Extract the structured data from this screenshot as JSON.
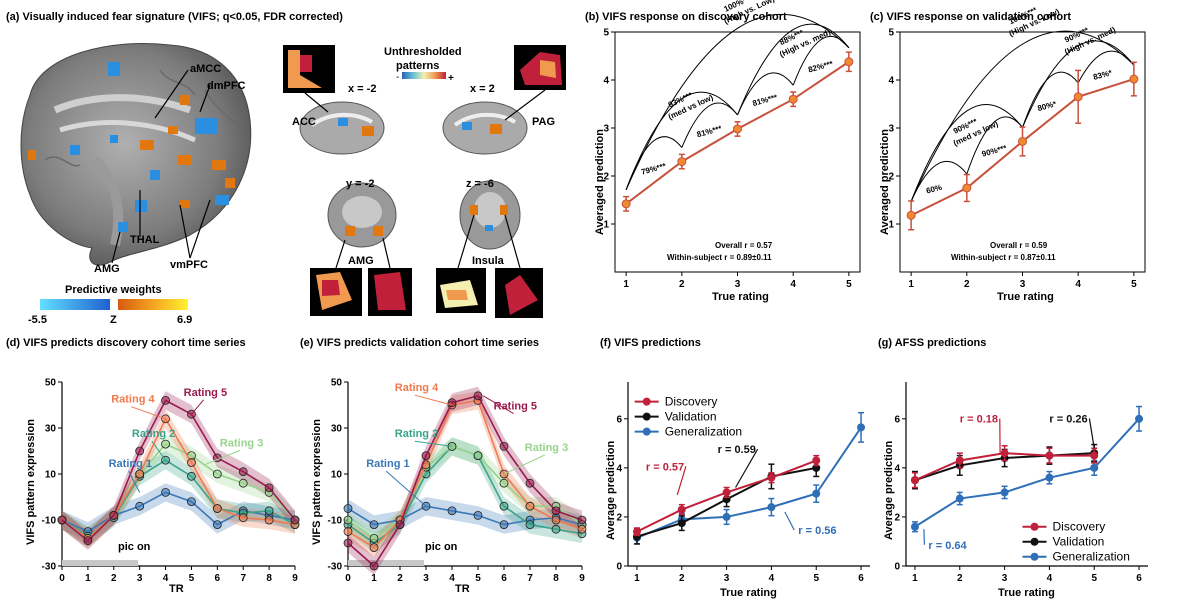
{
  "figure": {
    "panel_a": {
      "title": "(a) Visually induced fear signature (VIFS; q<0.05, FDR corrected)",
      "labels": {
        "amcc": "aMCC",
        "dmpfc": "dmPFC",
        "thal": "THAL",
        "vmpfc": "vmPFC",
        "amg": "AMG",
        "acc": "ACC",
        "pag": "PAG",
        "amg2": "AMG",
        "insula": "Insula",
        "x_neg2": "x = -2",
        "x_2": "x = 2",
        "y_neg2": "y = -2",
        "z_neg6": "z = -6",
        "unthresholded_1": "Unthresholded",
        "unthresholded_2": "patterns",
        "unth_minus": "-",
        "unth_plus": "+"
      },
      "colorbar": {
        "title": "Predictive weights",
        "min": "-5.5",
        "max": "6.9",
        "z": "Z"
      },
      "colors": {
        "negative": "#2a8fe0",
        "positive": "#e0780f",
        "brain": "#8a8a8a"
      }
    },
    "shared": {
      "y_label": "Averaged prediction",
      "x_label": "True rating"
    },
    "shared_d": {
      "y_label": "VIFS pattern expression",
      "x_label": "TR",
      "pic_on": "pic on"
    },
    "shared_f": {
      "y_label": "Average prediction",
      "x_label": "True rating"
    },
    "legend": {
      "discovery": "Discovery",
      "validation": "Validation",
      "generalization": "Generalization"
    },
    "colors": {
      "discovery": "#c0203a",
      "validation": "#111111",
      "generalization": "#2f6fb8",
      "rating1": "#3a78b8",
      "rating2": "#3aa38a",
      "rating3": "#98d48c",
      "rating4": "#f07a50",
      "rating5": "#9b1b4e",
      "ratings_line": "#c8503a",
      "ratings_marker": "#f08a30"
    }
  },
  "chart_data": [
    {
      "id": "b",
      "type": "line",
      "title": "(b) VIFS response on discovery cohort",
      "xlabel": "True rating",
      "ylabel": "Averaged prediction",
      "xlim": [
        0.8,
        5.2
      ],
      "ylim": [
        0,
        5
      ],
      "x": [
        1,
        2,
        3,
        4,
        5
      ],
      "series": [
        {
          "name": "Discovery",
          "values": [
            1.42,
            2.3,
            2.98,
            3.6,
            4.38
          ],
          "err": [
            0.15,
            0.15,
            0.15,
            0.15,
            0.2
          ]
        }
      ],
      "annotations": {
        "overall": "Overall r = 0.57",
        "within": "Within-subject r = 0.89±0.11",
        "arcs": [
          {
            "text": "79%***"
          },
          {
            "text": "81%***"
          },
          {
            "text": "81%***"
          },
          {
            "text": "82%***"
          },
          {
            "text": "93%***"
          },
          {
            "text": "(med vs low)"
          },
          {
            "text": "88%***"
          },
          {
            "text": "(High vs. med)"
          },
          {
            "text": "100%***"
          },
          {
            "text": "(High vs. Low)"
          }
        ]
      }
    },
    {
      "id": "c",
      "type": "line",
      "title": "(c) VIFS response on validation cohort",
      "xlabel": "True rating",
      "ylabel": "Averaged prediction",
      "xlim": [
        0.8,
        5.2
      ],
      "ylim": [
        0,
        5
      ],
      "x": [
        1,
        2,
        3,
        4,
        5
      ],
      "series": [
        {
          "name": "Validation",
          "values": [
            1.18,
            1.75,
            2.72,
            3.65,
            4.02
          ],
          "err": [
            0.3,
            0.28,
            0.3,
            0.55,
            0.35
          ]
        }
      ],
      "annotations": {
        "overall": "Overall r = 0.59",
        "within": "Within-subject r = 0.87±0.11",
        "arcs": [
          {
            "text": "60%"
          },
          {
            "text": "90%***"
          },
          {
            "text": "80%*"
          },
          {
            "text": "83%*"
          },
          {
            "text": "90%***"
          },
          {
            "text": "(med vs low)"
          },
          {
            "text": "90%***"
          },
          {
            "text": "(High vs. med)"
          },
          {
            "text": "100%***"
          },
          {
            "text": "(High vs. Low)"
          }
        ]
      }
    },
    {
      "id": "d",
      "type": "line",
      "title": "(d) VIFS predicts discovery cohort time series",
      "xlabel": "TR",
      "ylabel": "VIFS pattern expression",
      "xlim": [
        0,
        9
      ],
      "ylim": [
        -30,
        50
      ],
      "yticks": [
        -30,
        -10,
        10,
        30,
        50
      ],
      "x": [
        0,
        1,
        2,
        3,
        4,
        5,
        6,
        7,
        8,
        9
      ],
      "series": [
        {
          "name": "Rating 1",
          "values": [
            -10,
            -15,
            -8,
            -4,
            2,
            -2,
            -12,
            -6,
            -8,
            -10
          ]
        },
        {
          "name": "Rating 2",
          "values": [
            -10,
            -17,
            -9,
            9,
            16,
            9,
            -5,
            -7,
            -6,
            -12
          ]
        },
        {
          "name": "Rating 3",
          "values": [
            -10,
            -18,
            -8,
            10,
            23,
            18,
            10,
            6,
            2,
            -10
          ]
        },
        {
          "name": "Rating 4",
          "values": [
            -10,
            -18,
            -8,
            10,
            34,
            15,
            -5,
            -9,
            -10,
            -12
          ]
        },
        {
          "name": "Rating 5",
          "values": [
            -10,
            -19,
            -8,
            20,
            42,
            36,
            17,
            11,
            4,
            -10
          ]
        }
      ],
      "labels": [
        "Rating 1",
        "Rating 2",
        "Rating 3",
        "Rating 4",
        "Rating 5"
      ],
      "pic_on": "pic on"
    },
    {
      "id": "e",
      "type": "line",
      "title": "(e) VIFS predicts validation cohort time series",
      "xlabel": "TR",
      "ylabel": "VIFS pattern expression",
      "xlim": [
        0,
        9
      ],
      "ylim": [
        -30,
        50
      ],
      "yticks": [
        -30,
        -10,
        10,
        30,
        50
      ],
      "x": [
        0,
        1,
        2,
        3,
        4,
        5,
        6,
        7,
        8,
        9
      ],
      "series": [
        {
          "name": "Rating 1",
          "values": [
            -5,
            -12,
            -10,
            -4,
            -6,
            -8,
            -12,
            -10,
            -9,
            -12
          ]
        },
        {
          "name": "Rating 2",
          "values": [
            -12,
            -20,
            -12,
            10,
            22,
            18,
            -4,
            -12,
            -14,
            -16
          ]
        },
        {
          "name": "Rating 3",
          "values": [
            -10,
            -18,
            -10,
            13,
            22,
            18,
            6,
            -4,
            -4,
            -12
          ]
        },
        {
          "name": "Rating 4",
          "values": [
            -15,
            -22,
            -10,
            14,
            40,
            42,
            10,
            -4,
            -10,
            -14
          ]
        },
        {
          "name": "Rating 5",
          "values": [
            -20,
            -30,
            -12,
            18,
            41,
            44,
            22,
            6,
            -6,
            -10
          ]
        }
      ],
      "labels": [
        "Rating 1",
        "Rating 2",
        "Rating 3",
        "Rating 4",
        "Rating 5"
      ],
      "pic_on": "pic on"
    },
    {
      "id": "f",
      "type": "line",
      "title": "(f) VIFS predictions",
      "xlabel": "True rating",
      "ylabel": "Average prediction",
      "xlim": [
        0.8,
        6.2
      ],
      "ylim": [
        0,
        7.5
      ],
      "yticks": [
        0,
        2,
        4,
        6
      ],
      "x": [
        1,
        2,
        3,
        4,
        5,
        6
      ],
      "series": [
        {
          "name": "Discovery",
          "values": [
            1.4,
            2.3,
            3.0,
            3.6,
            4.3,
            null
          ],
          "err": [
            0.15,
            0.2,
            0.2,
            0.2,
            0.2,
            null
          ]
        },
        {
          "name": "Validation",
          "values": [
            1.2,
            1.75,
            2.72,
            3.65,
            4.0,
            null
          ],
          "err": [
            0.3,
            0.3,
            0.3,
            0.5,
            0.35,
            null
          ]
        },
        {
          "name": "Generalization",
          "values": [
            1.15,
            1.9,
            2.0,
            2.4,
            2.95,
            5.65
          ],
          "err": [
            0.25,
            0.25,
            0.3,
            0.35,
            0.35,
            0.6
          ]
        }
      ],
      "annotations": [
        "r = 0.57",
        "r = 0.59",
        "r = 0.56"
      ]
    },
    {
      "id": "g",
      "type": "line",
      "title": "(g) AFSS predictions",
      "xlabel": "True rating",
      "ylabel": "Average prediction",
      "xlim": [
        0.8,
        6.2
      ],
      "ylim": [
        0,
        7.5
      ],
      "yticks": [
        0,
        2,
        4,
        6
      ],
      "x": [
        1,
        2,
        3,
        4,
        5,
        6
      ],
      "series": [
        {
          "name": "Discovery",
          "values": [
            3.5,
            4.3,
            4.6,
            4.5,
            4.5,
            null
          ],
          "err": [
            0.3,
            0.3,
            0.3,
            0.3,
            0.3,
            null
          ]
        },
        {
          "name": "Validation",
          "values": [
            3.5,
            4.1,
            4.4,
            4.5,
            4.6,
            null
          ],
          "err": [
            0.35,
            0.4,
            0.35,
            0.35,
            0.35,
            null
          ]
        },
        {
          "name": "Generalization",
          "values": [
            1.6,
            2.75,
            3.0,
            3.6,
            4.0,
            6.0
          ],
          "err": [
            0.2,
            0.25,
            0.25,
            0.25,
            0.3,
            0.5
          ]
        }
      ],
      "annotations": [
        "r = 0.18",
        "r = 0.26",
        "r = 0.64"
      ]
    }
  ]
}
